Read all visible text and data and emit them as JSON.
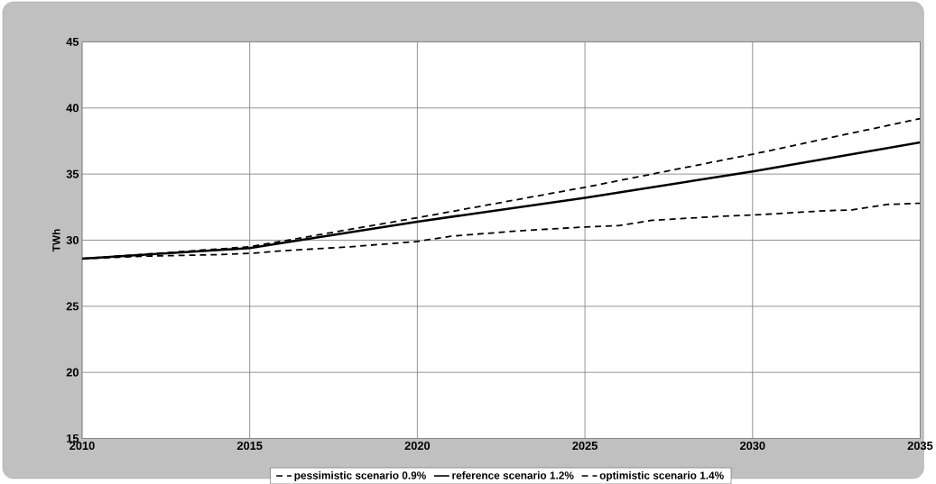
{
  "chart_data": {
    "type": "line",
    "ylabel": "TWh",
    "x": [
      2010,
      2015,
      2020,
      2025,
      2030,
      2035
    ],
    "series": [
      {
        "name": "pessimistic scenario 0.9%",
        "color": "#000000",
        "line_style": "dashed",
        "x": [
          2010,
          2012,
          2014,
          2015,
          2016,
          2018,
          2020,
          2021,
          2023,
          2025,
          2026,
          2027,
          2029,
          2030,
          2032,
          2033,
          2034,
          2035
        ],
        "values": [
          28.6,
          28.8,
          28.9,
          29.0,
          29.2,
          29.5,
          29.9,
          30.3,
          30.7,
          31.0,
          31.1,
          31.5,
          31.8,
          31.9,
          32.2,
          32.3,
          32.7,
          32.8
        ]
      },
      {
        "name": "reference scenario 1.2%",
        "color": "#000000",
        "line_style": "solid",
        "values": [
          28.6,
          29.4,
          31.4,
          33.2,
          35.2,
          37.4
        ]
      },
      {
        "name": "optimistic scenario 1.4%",
        "color": "#000000",
        "line_style": "dashed",
        "x": [
          2010,
          2015,
          2020,
          2025,
          2030,
          2035
        ],
        "values": [
          28.6,
          29.5,
          31.7,
          34.0,
          36.5,
          39.2
        ]
      }
    ],
    "xlim": [
      2010,
      2035
    ],
    "xticks": [
      2010,
      2015,
      2020,
      2025,
      2030,
      2035
    ],
    "ylim": [
      15,
      45
    ],
    "yticks": [
      15,
      20,
      25,
      30,
      35,
      40,
      45
    ],
    "grid": true,
    "legend": "bottom",
    "marker": "none"
  }
}
